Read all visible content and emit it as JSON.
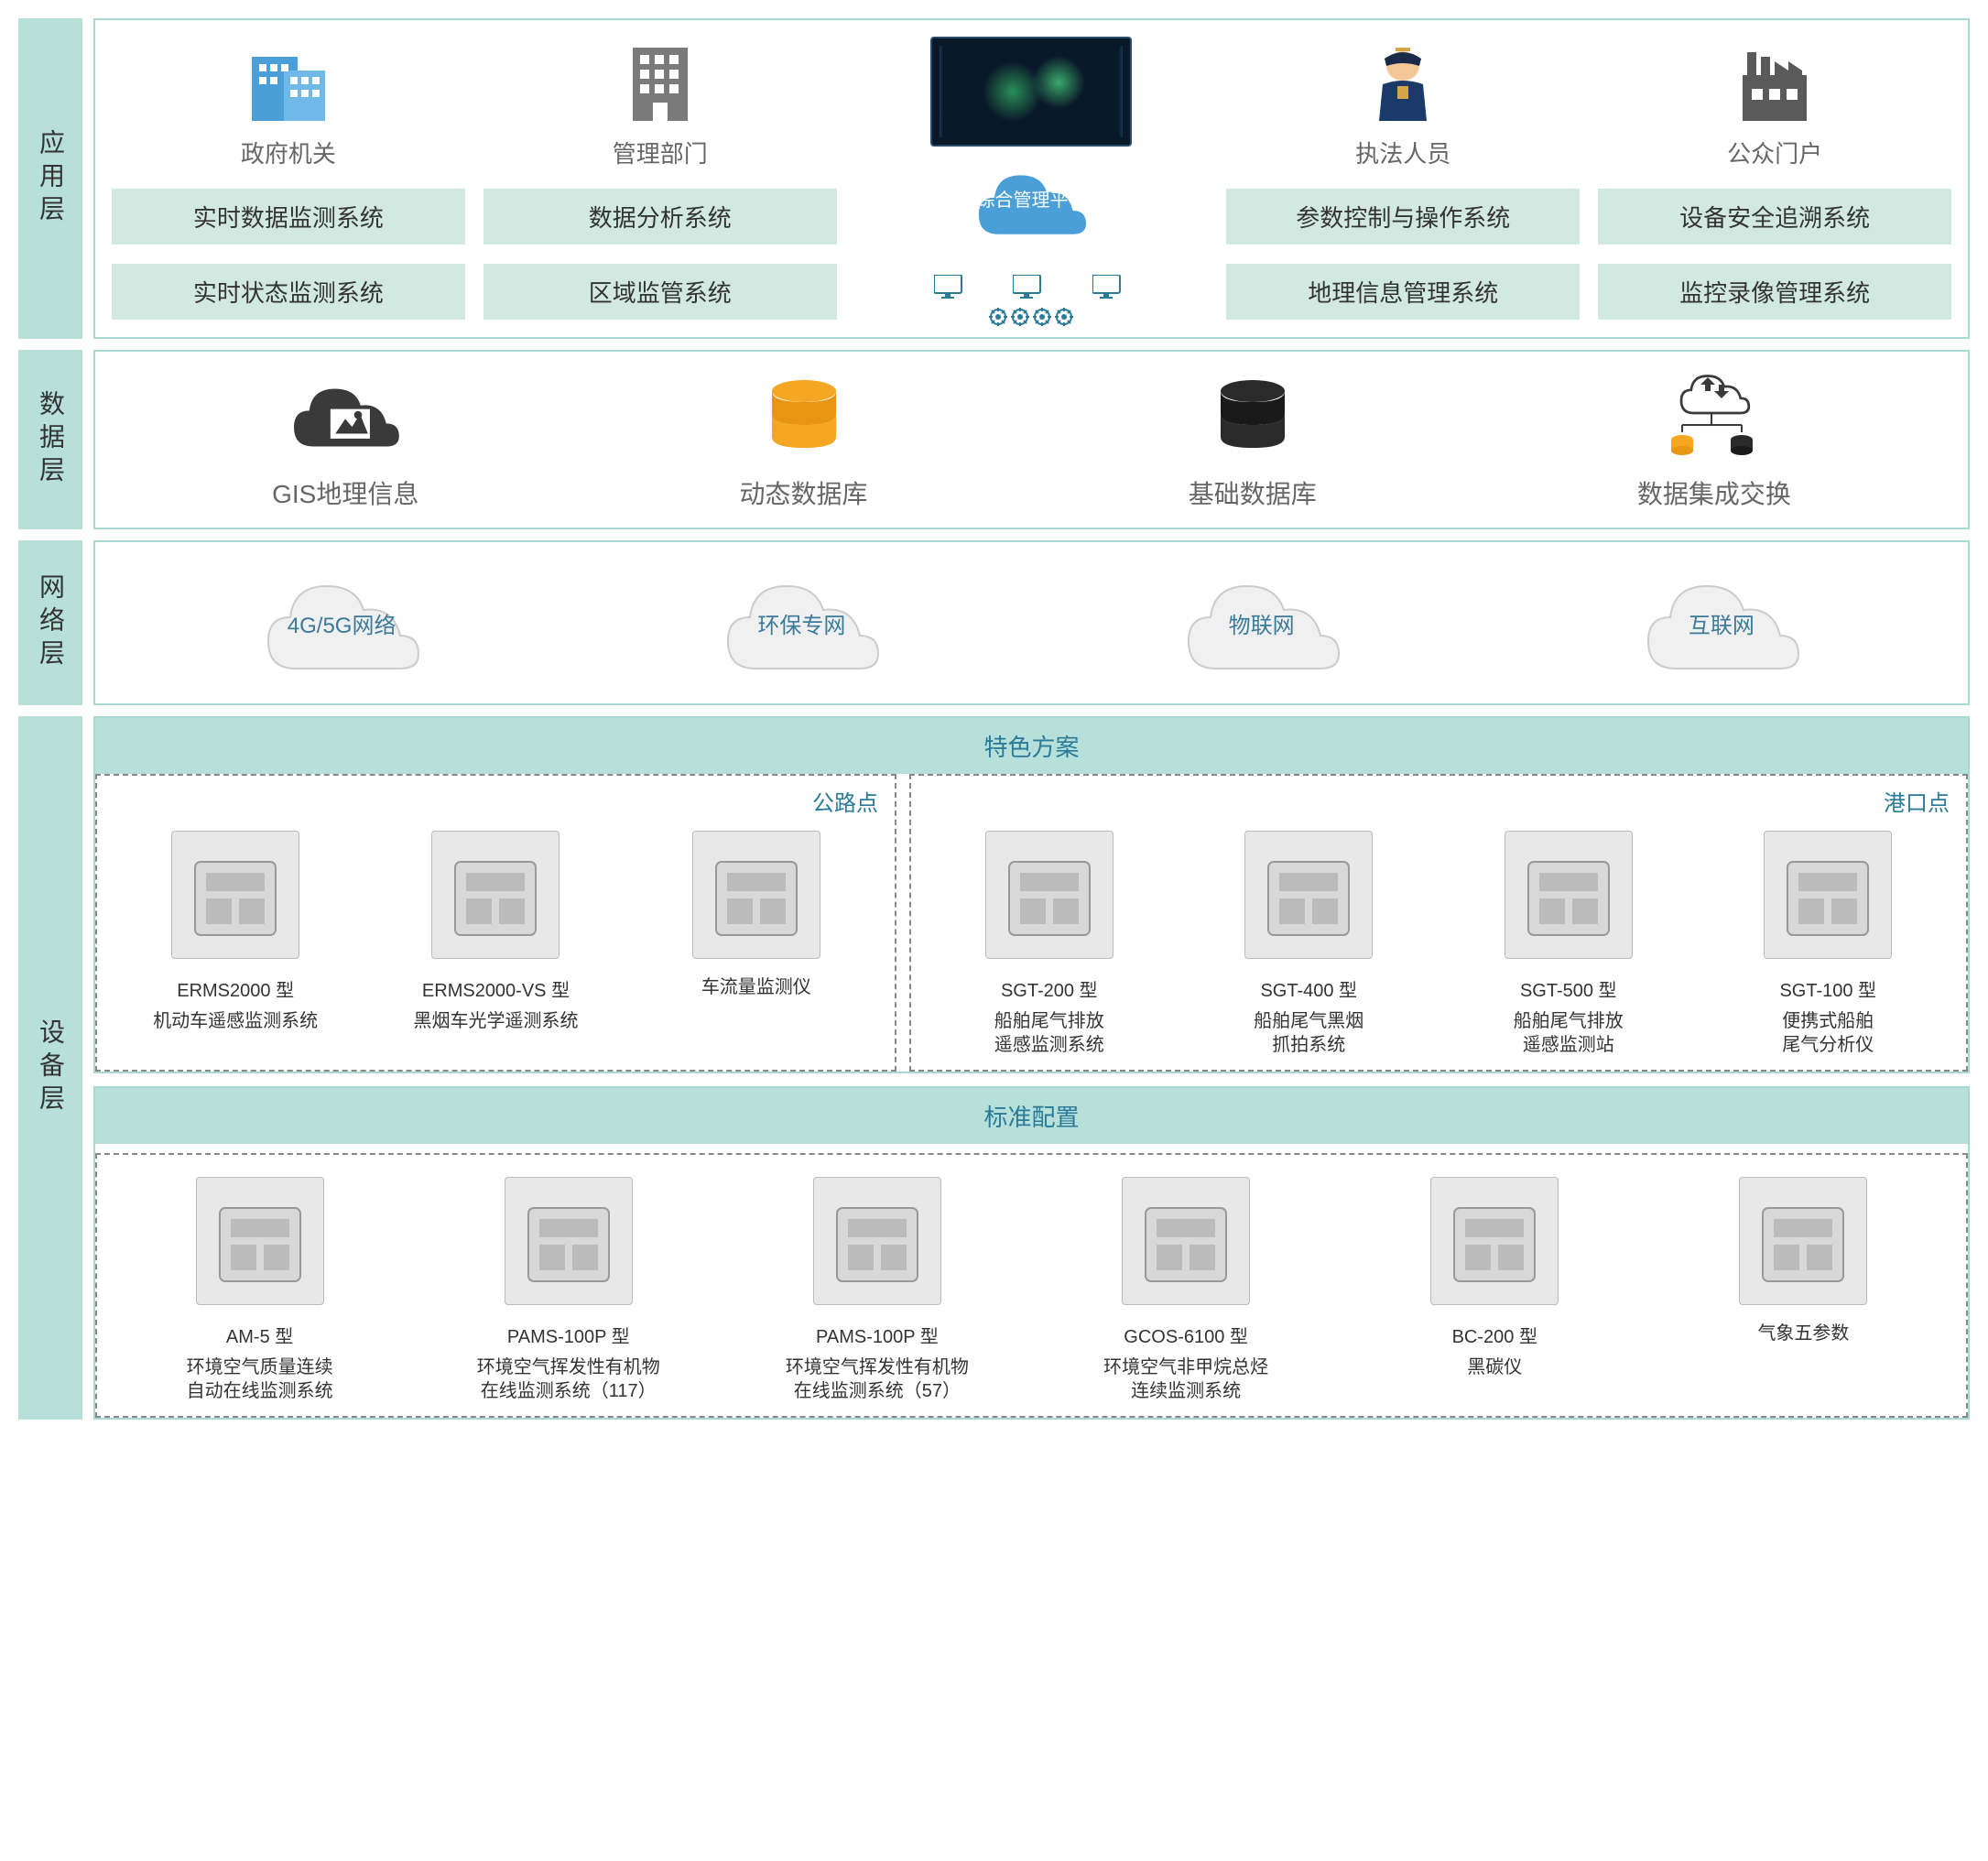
{
  "colors": {
    "layer_label_bg": "#b7e0da",
    "layer_border": "#a7d8d1",
    "sys_box_bg": "#d2e9e1",
    "text_primary": "#333333",
    "text_secondary": "#666666",
    "accent_blue": "#2a7a9a",
    "dashed_border": "#888888"
  },
  "layers": {
    "application": {
      "label": "应用层",
      "columns": [
        {
          "icon": "building-blue",
          "title": "政府机关",
          "systems": [
            "实时数据监测系统",
            "实时状态监测系统"
          ]
        },
        {
          "icon": "building-gray",
          "title": "管理部门",
          "systems": [
            "数据分析系统",
            "区域监管系统"
          ]
        },
        {
          "icon": "officer",
          "title": "执法人员",
          "systems": [
            "参数控制与操作系统",
            "地理信息管理系统"
          ]
        },
        {
          "icon": "factory",
          "title": "公众门户",
          "systems": [
            "设备安全追溯系统",
            "监控录像管理系统"
          ]
        }
      ],
      "center": {
        "platform_label": "综合管理平台"
      }
    },
    "data": {
      "label": "数据层",
      "items": [
        {
          "icon": "gis-cloud",
          "label": "GIS地理信息"
        },
        {
          "icon": "db-orange",
          "label": "动态数据库"
        },
        {
          "icon": "db-dark",
          "label": "基础数据库"
        },
        {
          "icon": "exchange",
          "label": "数据集成交换"
        }
      ]
    },
    "network": {
      "label": "网络层",
      "items": [
        "4G/5G网络",
        "环保专网",
        "物联网",
        "互联网"
      ]
    },
    "device": {
      "label": "设备层",
      "featured": {
        "header": "特色方案",
        "groups": [
          {
            "label": "公路点",
            "devices": [
              {
                "model": "ERMS2000 型",
                "desc": "机动车遥感监测系统"
              },
              {
                "model": "ERMS2000-VS 型",
                "desc": "黑烟车光学遥测系统"
              },
              {
                "model": "",
                "desc": "车流量监测仪"
              }
            ]
          },
          {
            "label": "港口点",
            "devices": [
              {
                "model": "SGT-200 型",
                "desc": "船舶尾气排放\n遥感监测系统"
              },
              {
                "model": "SGT-400 型",
                "desc": "船舶尾气黑烟\n抓拍系统"
              },
              {
                "model": "SGT-500 型",
                "desc": "船舶尾气排放\n遥感监测站"
              },
              {
                "model": "SGT-100 型",
                "desc": "便携式船舶\n尾气分析仪"
              }
            ]
          }
        ]
      },
      "standard": {
        "header": "标准配置",
        "devices": [
          {
            "model": "AM-5 型",
            "desc": "环境空气质量连续\n自动在线监测系统"
          },
          {
            "model": "PAMS-100P 型",
            "desc": "环境空气挥发性有机物\n在线监测系统（117）"
          },
          {
            "model": "PAMS-100P 型",
            "desc": "环境空气挥发性有机物\n在线监测系统（57）"
          },
          {
            "model": "GCOS-6100 型",
            "desc": "环境空气非甲烷总烃\n连续监测系统"
          },
          {
            "model": "BC-200 型",
            "desc": "黑碳仪"
          },
          {
            "model": "",
            "desc": "气象五参数"
          }
        ]
      }
    }
  }
}
